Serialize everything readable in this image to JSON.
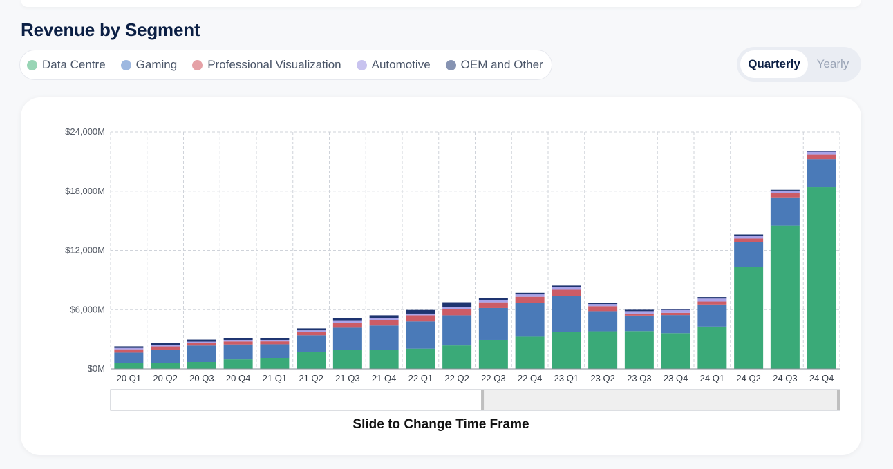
{
  "title": "Revenue by Segment",
  "legend": [
    {
      "label": "Data Centre",
      "color": "#98d5b5"
    },
    {
      "label": "Gaming",
      "color": "#9db8e0"
    },
    {
      "label": "Professional Visualization",
      "color": "#e5a1a6"
    },
    {
      "label": "Automotive",
      "color": "#c8c3ef"
    },
    {
      "label": "OEM and Other",
      "color": "#8693b2"
    }
  ],
  "toggle": {
    "active": "Quarterly",
    "inactive": "Yearly"
  },
  "slider": {
    "caption": "Slide to Change Time Frame",
    "selection_end_fraction": 0.51
  },
  "chart_data": {
    "type": "bar",
    "stacked": true,
    "title": "Revenue by Segment",
    "xlabel": "",
    "ylabel": "",
    "ylim": [
      0,
      24000
    ],
    "yticks": [
      0,
      6000,
      12000,
      18000,
      24000
    ],
    "ytick_labels": [
      "$0M",
      "$6,000M",
      "$12,000M",
      "$18,000M",
      "$24,000M"
    ],
    "grid": true,
    "categories": [
      "20 Q1",
      "20 Q2",
      "20 Q3",
      "20 Q4",
      "21 Q1",
      "21 Q2",
      "21 Q3",
      "21 Q4",
      "22 Q1",
      "22 Q2",
      "22 Q3",
      "22 Q4",
      "23 Q1",
      "23 Q2",
      "23 Q3",
      "23 Q4",
      "24 Q1",
      "24 Q2",
      "24 Q3",
      "24 Q4"
    ],
    "series": [
      {
        "name": "Data Centre",
        "color": "#3aaa78",
        "values": [
          600,
          630,
          700,
          970,
          1060,
          1750,
          1900,
          1900,
          2050,
          2370,
          2940,
          3260,
          3750,
          3810,
          3830,
          3620,
          4280,
          10320,
          14510,
          18400
        ]
      },
      {
        "name": "Gaming",
        "color": "#4a7ab8",
        "values": [
          1050,
          1330,
          1660,
          1500,
          1430,
          1660,
          2270,
          2490,
          2760,
          3060,
          3220,
          3420,
          3620,
          2040,
          1570,
          1830,
          2240,
          2490,
          2860,
          2860
        ]
      },
      {
        "name": "Professional Visualization",
        "color": "#cc5c66",
        "values": [
          330,
          310,
          270,
          310,
          300,
          370,
          520,
          580,
          620,
          640,
          580,
          620,
          640,
          500,
          200,
          230,
          300,
          380,
          420,
          460
        ]
      },
      {
        "name": "Automotive",
        "color": "#a9a3e8",
        "values": [
          140,
          160,
          130,
          160,
          150,
          130,
          170,
          140,
          170,
          200,
          220,
          250,
          280,
          220,
          250,
          290,
          300,
          250,
          270,
          280
        ]
      },
      {
        "name": "OEM and Other",
        "color": "#1e3470",
        "values": [
          160,
          200,
          210,
          190,
          200,
          190,
          300,
          320,
          370,
          480,
          200,
          160,
          150,
          140,
          140,
          110,
          150,
          170,
          80,
          90
        ]
      }
    ]
  }
}
